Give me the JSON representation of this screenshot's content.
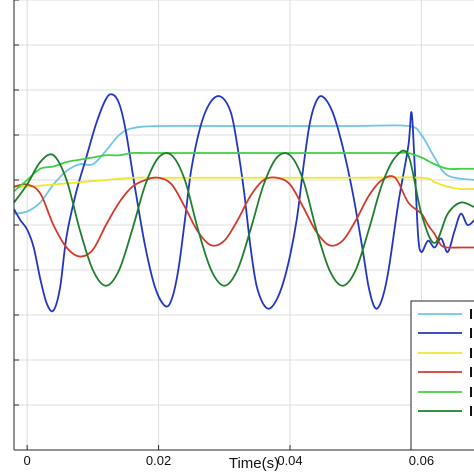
{
  "chart_data": {
    "type": "line",
    "title": "",
    "xlabel": "Time(s)",
    "ylabel": "",
    "xlim": [
      -0.002,
      0.068
    ],
    "ylim": [
      -1.0,
      1.0
    ],
    "x_ticks": [
      0,
      0.02,
      0.04,
      0.06
    ],
    "x_tick_labels": [
      "0",
      "0.02",
      "0.04",
      "0.06"
    ],
    "grid": true,
    "legend_position": "bottom-right",
    "series": [
      {
        "color": "#6fc6e8",
        "x": [
          -0.002,
          0,
          0.002,
          0.004,
          0.006,
          0.008,
          0.01,
          0.012,
          0.014,
          0.016,
          0.02,
          0.03,
          0.04,
          0.05,
          0.058,
          0.06,
          0.062,
          0.064,
          0.068
        ],
        "y": [
          0.05,
          0.06,
          0.1,
          0.18,
          0.24,
          0.27,
          0.27,
          0.33,
          0.4,
          0.43,
          0.44,
          0.44,
          0.44,
          0.44,
          0.44,
          0.4,
          0.3,
          0.22,
          0.2
        ]
      },
      {
        "color": "#2236c4",
        "x": [
          -0.002,
          -0.001,
          0,
          0.001,
          0.002,
          0.003,
          0.004,
          0.005,
          0.006,
          0.0075,
          0.009,
          0.0105,
          0.012,
          0.013,
          0.014,
          0.015,
          0.0165,
          0.018,
          0.0195,
          0.021,
          0.022,
          0.023,
          0.024,
          0.025,
          0.0265,
          0.028,
          0.0295,
          0.031,
          0.032,
          0.033,
          0.034,
          0.035,
          0.0365,
          0.038,
          0.0395,
          0.041,
          0.042,
          0.043,
          0.044,
          0.045,
          0.0465,
          0.048,
          0.0495,
          0.051,
          0.052,
          0.053,
          0.054,
          0.055,
          0.0565,
          0.058,
          0.0585,
          0.059,
          0.0595,
          0.06,
          0.061,
          0.062,
          0.063,
          0.064,
          0.065,
          0.066,
          0.067,
          0.068
        ],
        "y": [
          0.07,
          0.02,
          -0.02,
          -0.1,
          -0.24,
          -0.35,
          -0.38,
          -0.28,
          -0.05,
          0.15,
          0.3,
          0.45,
          0.56,
          0.58,
          0.54,
          0.42,
          0.15,
          -0.1,
          -0.28,
          -0.36,
          -0.33,
          -0.2,
          0.02,
          0.25,
          0.45,
          0.55,
          0.57,
          0.5,
          0.35,
          0.15,
          -0.1,
          -0.28,
          -0.37,
          -0.33,
          -0.2,
          0.02,
          0.25,
          0.45,
          0.55,
          0.57,
          0.5,
          0.35,
          0.15,
          -0.1,
          -0.28,
          -0.37,
          -0.33,
          -0.2,
          0.1,
          0.35,
          0.5,
          0.25,
          -0.05,
          -0.12,
          -0.07,
          -0.1,
          -0.06,
          -0.12,
          -0.03,
          0.05,
          0.0,
          0.02
        ]
      },
      {
        "color": "#f0e62a",
        "x": [
          -0.002,
          0,
          0.004,
          0.008,
          0.012,
          0.016,
          0.02,
          0.03,
          0.04,
          0.05,
          0.06,
          0.062,
          0.064,
          0.066,
          0.068
        ],
        "y": [
          0.17,
          0.17,
          0.18,
          0.19,
          0.2,
          0.21,
          0.21,
          0.21,
          0.21,
          0.21,
          0.21,
          0.19,
          0.17,
          0.16,
          0.16
        ]
      },
      {
        "color": "#d33a2c",
        "x": [
          -0.002,
          0,
          0.002,
          0.004,
          0.006,
          0.008,
          0.01,
          0.012,
          0.014,
          0.016,
          0.018,
          0.02,
          0.022,
          0.024,
          0.026,
          0.028,
          0.03,
          0.032,
          0.034,
          0.036,
          0.038,
          0.04,
          0.042,
          0.044,
          0.046,
          0.048,
          0.05,
          0.052,
          0.054,
          0.056,
          0.058,
          0.06,
          0.061,
          0.062,
          0.063,
          0.064,
          0.066,
          0.068
        ],
        "y": [
          0.17,
          0.18,
          0.14,
          0.0,
          -0.1,
          -0.14,
          -0.11,
          0.0,
          0.1,
          0.17,
          0.2,
          0.21,
          0.18,
          0.08,
          -0.03,
          -0.09,
          -0.07,
          0.02,
          0.13,
          0.2,
          0.21,
          0.18,
          0.08,
          -0.03,
          -0.09,
          -0.07,
          0.02,
          0.13,
          0.2,
          0.21,
          0.1,
          0.05,
          0.0,
          -0.04,
          -0.09,
          -0.1,
          -0.1,
          -0.1
        ]
      },
      {
        "color": "#3fd03f",
        "x": [
          -0.002,
          0,
          0.002,
          0.004,
          0.006,
          0.008,
          0.01,
          0.012,
          0.014,
          0.016,
          0.018,
          0.02,
          0.022,
          0.024,
          0.026,
          0.028,
          0.03,
          0.032,
          0.034,
          0.036,
          0.038,
          0.04,
          0.042,
          0.044,
          0.046,
          0.048,
          0.05,
          0.052,
          0.054,
          0.056,
          0.058,
          0.06,
          0.062,
          0.064,
          0.066,
          0.068
        ],
        "y": [
          0.15,
          0.2,
          0.25,
          0.26,
          0.28,
          0.29,
          0.3,
          0.31,
          0.31,
          0.32,
          0.32,
          0.32,
          0.32,
          0.32,
          0.32,
          0.32,
          0.32,
          0.32,
          0.32,
          0.32,
          0.32,
          0.32,
          0.32,
          0.32,
          0.32,
          0.32,
          0.32,
          0.32,
          0.32,
          0.32,
          0.32,
          0.3,
          0.27,
          0.25,
          0.25,
          0.25
        ]
      },
      {
        "color": "#1e7f2a",
        "x": [
          -0.002,
          0,
          0.002,
          0.004,
          0.006,
          0.008,
          0.01,
          0.012,
          0.014,
          0.016,
          0.018,
          0.02,
          0.022,
          0.024,
          0.026,
          0.028,
          0.03,
          0.032,
          0.034,
          0.036,
          0.038,
          0.04,
          0.042,
          0.044,
          0.046,
          0.048,
          0.05,
          0.052,
          0.054,
          0.056,
          0.058,
          0.06,
          0.062,
          0.064,
          0.066,
          0.068
        ],
        "y": [
          0.1,
          0.18,
          0.28,
          0.31,
          0.2,
          -0.02,
          -0.2,
          -0.27,
          -0.2,
          -0.02,
          0.18,
          0.3,
          0.31,
          0.2,
          -0.02,
          -0.2,
          -0.27,
          -0.2,
          -0.02,
          0.18,
          0.3,
          0.31,
          0.2,
          -0.02,
          -0.2,
          -0.27,
          -0.2,
          -0.02,
          0.18,
          0.3,
          0.31,
          0.05,
          -0.08,
          0.05,
          0.1,
          0.08
        ]
      }
    ]
  }
}
